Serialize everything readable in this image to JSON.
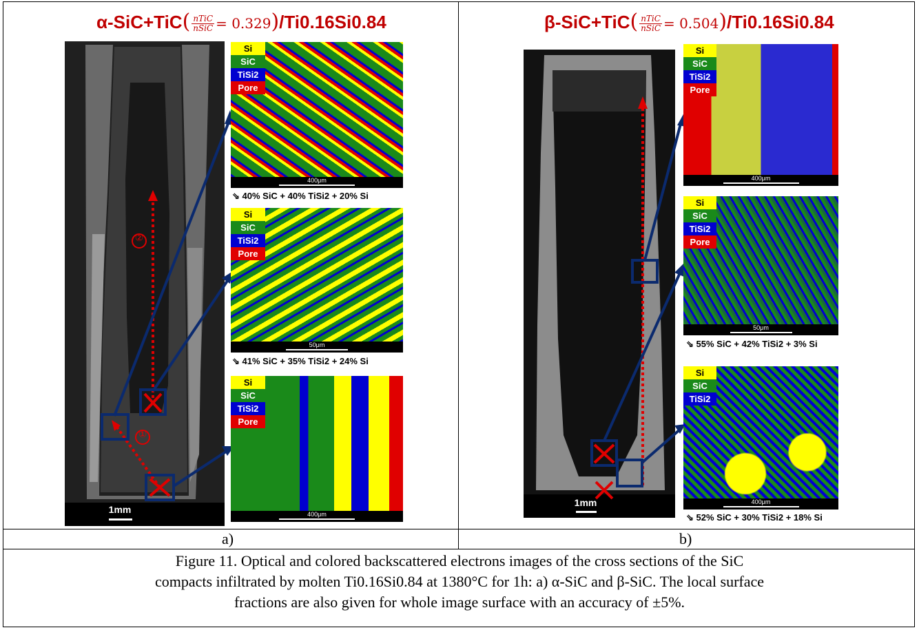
{
  "panel_a": {
    "title_main": "α-SiC+TiC",
    "ratio_num": "nTiC",
    "ratio_den": "nSiC",
    "ratio_value": "= 0.329",
    "title_suffix": "/Ti0.16Si0.84",
    "scale_label": "1mm",
    "label": "a)",
    "marker_1": "①",
    "marker_2": "②",
    "maps": [
      {
        "scale": "400μm",
        "fraction": "40% SiC + 40% TiSi2 + 20% Si"
      },
      {
        "scale": "50μm",
        "fraction": "41% SiC + 35% TiSi2 + 24% Si"
      },
      {
        "scale": "400μm",
        "fraction": ""
      }
    ]
  },
  "panel_b": {
    "title_main": "β-SiC+TiC",
    "ratio_num": "nTiC",
    "ratio_den": "nSiC",
    "ratio_value": "= 0.504",
    "title_suffix": "/Ti0.16Si0.84",
    "scale_label": "1mm",
    "label": "b)",
    "maps": [
      {
        "scale": "400μm",
        "fraction": ""
      },
      {
        "scale": "50μm",
        "fraction": "55% SiC + 42% TiSi2 + 3% Si"
      },
      {
        "scale": "400μm",
        "fraction": "52% SiC + 30% TiSi2 + 18% Si"
      }
    ]
  },
  "legend": {
    "si": "Si",
    "sic": "SiC",
    "tisi2": "TiSi2",
    "pore": "Pore"
  },
  "caption": {
    "line1": "Figure 11. Optical and colored backscattered electrons images of the cross sections of the SiC",
    "line2": "compacts infiltrated by molten Ti0.16Si0.84 at 1380°C for 1h: a) α-SiC and β-SiC. The local surface",
    "line3": "fractions are also given for whole image surface with an accuracy of ±5%."
  },
  "colors": {
    "si": "#ffff00",
    "sic": "#1a8a1a",
    "tisi2": "#0000d0",
    "pore": "#e00000",
    "title": "#c00000",
    "arrow": "#0b2a6e"
  }
}
